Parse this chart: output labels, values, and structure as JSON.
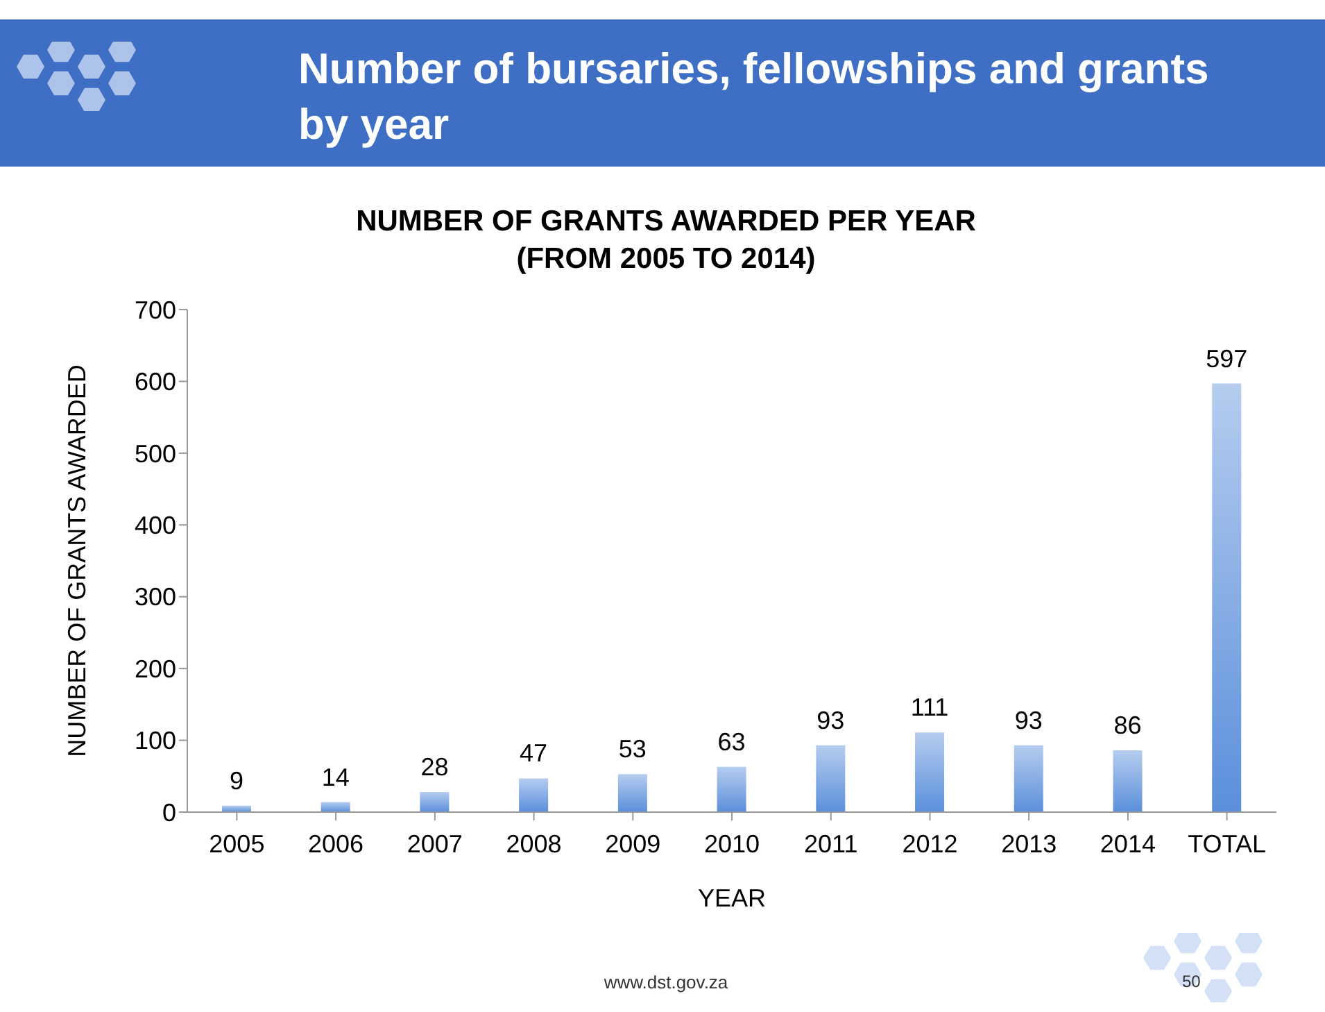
{
  "chart_data": {
    "type": "bar",
    "title": "Number of bursaries, fellowships and grants by year",
    "subtitle": "NUMBER OF GRANTS AWARDED PER YEAR\n(FROM 2005 TO 2014)",
    "xlabel": "YEAR",
    "ylabel": "NUMBER OF GRANTS AWARDED",
    "categories": [
      "2005",
      "2006",
      "2007",
      "2008",
      "2009",
      "2010",
      "2011",
      "2012",
      "2013",
      "2014",
      "TOTAL"
    ],
    "values": [
      9,
      14,
      28,
      47,
      53,
      63,
      93,
      111,
      93,
      86,
      597
    ],
    "color": "#5b8fdb",
    "data_labels": true,
    "ylim": [
      0,
      700
    ],
    "yticks": [
      0,
      100,
      200,
      300,
      400,
      500,
      600,
      700
    ],
    "annotations": [
      "www.dst.gov.za",
      "50"
    ]
  }
}
